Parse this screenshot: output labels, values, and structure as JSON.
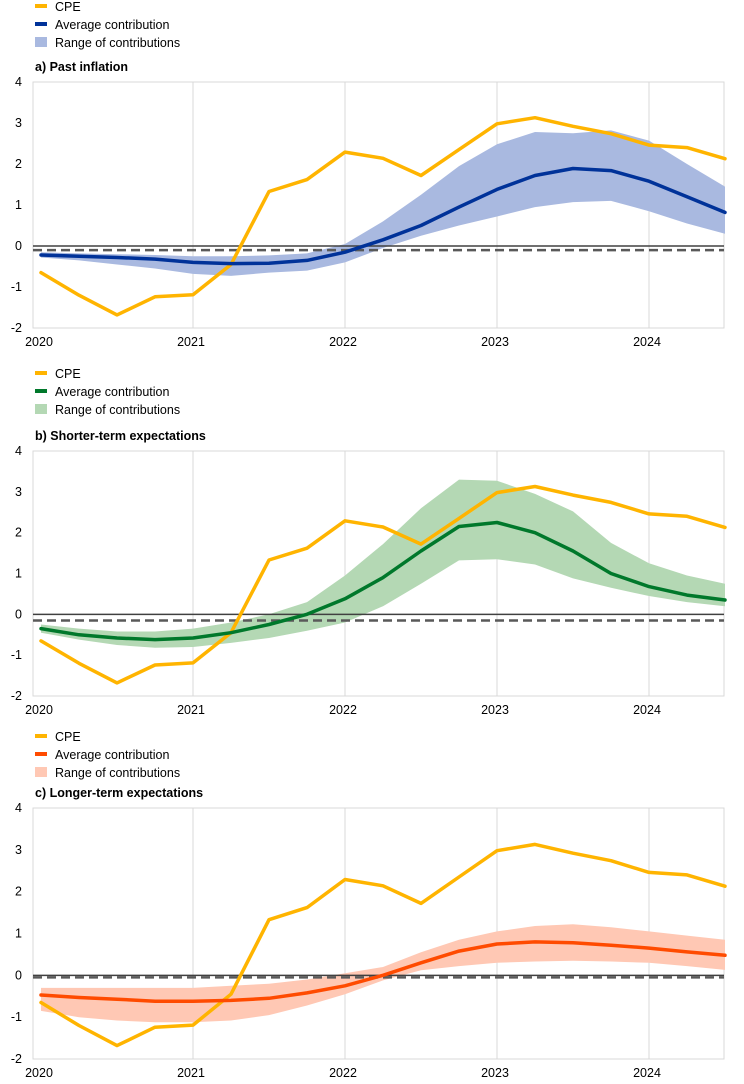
{
  "chart_data": [
    {
      "type": "line",
      "title": "a) Past inflation",
      "legend": {
        "placement": "top-left",
        "cpe_label": "CPE",
        "avg_label": "Average contribution",
        "range_label": "Range of contributions"
      },
      "colors": {
        "cpe": "#FFB400",
        "avg": "#003299",
        "band": "#A9B9E0"
      },
      "x": [
        2020.0,
        2020.25,
        2020.5,
        2020.75,
        2021.0,
        2021.25,
        2021.5,
        2021.75,
        2022.0,
        2022.25,
        2022.5,
        2022.75,
        2023.0,
        2023.25,
        2023.5,
        2023.75,
        2024.0,
        2024.25,
        2024.5
      ],
      "xticks": [
        2020,
        2021,
        2022,
        2023,
        2024
      ],
      "xtick_labels": [
        "2020",
        "2021",
        "2022",
        "2023",
        "2024"
      ],
      "ylim": [
        -2,
        4
      ],
      "yticks": [
        -2,
        -1,
        0,
        1,
        2,
        3,
        4
      ],
      "ytick_labels": [
        "-2",
        "-1",
        "0",
        "1",
        "2",
        "3",
        "4"
      ],
      "dashed_reference": -0.1,
      "grid": true,
      "series": [
        {
          "name": "CPE",
          "values": [
            -0.65,
            -1.2,
            -1.68,
            -1.24,
            -1.19,
            -0.45,
            1.33,
            1.62,
            2.29,
            2.14,
            1.72,
            2.35,
            2.98,
            3.13,
            2.92,
            2.74,
            2.46,
            2.4,
            2.13
          ]
        },
        {
          "name": "Average contribution",
          "values": [
            -0.22,
            -0.25,
            -0.28,
            -0.32,
            -0.4,
            -0.43,
            -0.42,
            -0.35,
            -0.15,
            0.15,
            0.5,
            0.95,
            1.38,
            1.72,
            1.89,
            1.84,
            1.58,
            1.2,
            0.82
          ]
        },
        {
          "name": "Range of contributions",
          "low": [
            -0.28,
            -0.35,
            -0.45,
            -0.55,
            -0.68,
            -0.73,
            -0.65,
            -0.6,
            -0.4,
            -0.05,
            0.25,
            0.5,
            0.72,
            0.95,
            1.07,
            1.1,
            0.85,
            0.55,
            0.3
          ],
          "high": [
            -0.15,
            -0.18,
            -0.2,
            -0.22,
            -0.25,
            -0.25,
            -0.23,
            -0.18,
            0.05,
            0.6,
            1.25,
            1.95,
            2.48,
            2.78,
            2.75,
            2.82,
            2.57,
            2.0,
            1.45
          ]
        }
      ]
    },
    {
      "type": "line",
      "title": "b) Shorter-term expectations",
      "legend": {
        "placement": "top-left",
        "cpe_label": "CPE",
        "avg_label": "Average contribution",
        "range_label": "Range of contributions"
      },
      "colors": {
        "cpe": "#FFB400",
        "avg": "#00782B",
        "band": "#B4D8B4"
      },
      "x": [
        2020.0,
        2020.25,
        2020.5,
        2020.75,
        2021.0,
        2021.25,
        2021.5,
        2021.75,
        2022.0,
        2022.25,
        2022.5,
        2022.75,
        2023.0,
        2023.25,
        2023.5,
        2023.75,
        2024.0,
        2024.25,
        2024.5
      ],
      "xticks": [
        2020,
        2021,
        2022,
        2023,
        2024
      ],
      "xtick_labels": [
        "2020",
        "2021",
        "2022",
        "2023",
        "2024"
      ],
      "ylim": [
        -2,
        4
      ],
      "yticks": [
        -2,
        -1,
        0,
        1,
        2,
        3,
        4
      ],
      "ytick_labels": [
        "-2",
        "-1",
        "0",
        "1",
        "2",
        "3",
        "4"
      ],
      "dashed_reference": -0.15,
      "grid": true,
      "series": [
        {
          "name": "CPE",
          "values": [
            -0.65,
            -1.2,
            -1.68,
            -1.24,
            -1.19,
            -0.45,
            1.33,
            1.62,
            2.29,
            2.14,
            1.72,
            2.35,
            2.98,
            3.13,
            2.92,
            2.74,
            2.46,
            2.4,
            2.13
          ]
        },
        {
          "name": "Average contribution",
          "values": [
            -0.35,
            -0.5,
            -0.58,
            -0.62,
            -0.58,
            -0.45,
            -0.25,
            0.0,
            0.38,
            0.9,
            1.55,
            2.15,
            2.25,
            2.0,
            1.55,
            1.0,
            0.68,
            0.47,
            0.35
          ]
        },
        {
          "name": "Range of contributions",
          "low": [
            -0.45,
            -0.62,
            -0.75,
            -0.82,
            -0.8,
            -0.7,
            -0.58,
            -0.4,
            -0.2,
            0.2,
            0.75,
            1.32,
            1.35,
            1.22,
            0.88,
            0.65,
            0.45,
            0.3,
            0.2
          ],
          "high": [
            -0.25,
            -0.35,
            -0.42,
            -0.42,
            -0.35,
            -0.2,
            0.0,
            0.3,
            0.95,
            1.72,
            2.6,
            3.3,
            3.27,
            2.95,
            2.52,
            1.75,
            1.25,
            0.95,
            0.75
          ]
        }
      ]
    },
    {
      "type": "line",
      "title": "c) Longer-term expectations",
      "legend": {
        "placement": "top-left",
        "cpe_label": "CPE",
        "avg_label": "Average contribution",
        "range_label": "Range of contributions"
      },
      "colors": {
        "cpe": "#FFB400",
        "avg": "#FF4B00",
        "band": "#FFC8B4"
      },
      "x": [
        2020.0,
        2020.25,
        2020.5,
        2020.75,
        2021.0,
        2021.25,
        2021.5,
        2021.75,
        2022.0,
        2022.25,
        2022.5,
        2022.75,
        2023.0,
        2023.25,
        2023.5,
        2023.75,
        2024.0,
        2024.25,
        2024.5
      ],
      "xticks": [
        2020,
        2021,
        2022,
        2023,
        2024
      ],
      "xtick_labels": [
        "2020",
        "2021",
        "2022",
        "2023",
        "2024"
      ],
      "ylim": [
        -2,
        4
      ],
      "yticks": [
        -2,
        -1,
        0,
        1,
        2,
        3,
        4
      ],
      "ytick_labels": [
        "-2",
        "-1",
        "0",
        "1",
        "2",
        "3",
        "4"
      ],
      "dashed_reference": -0.05,
      "grid": true,
      "series": [
        {
          "name": "CPE",
          "values": [
            -0.65,
            -1.2,
            -1.68,
            -1.24,
            -1.19,
            -0.45,
            1.33,
            1.62,
            2.29,
            2.14,
            1.72,
            2.35,
            2.98,
            3.13,
            2.92,
            2.74,
            2.46,
            2.4,
            2.13
          ]
        },
        {
          "name": "Average contribution",
          "values": [
            -0.47,
            -0.53,
            -0.57,
            -0.62,
            -0.62,
            -0.6,
            -0.55,
            -0.42,
            -0.25,
            0.0,
            0.3,
            0.58,
            0.75,
            0.8,
            0.78,
            0.72,
            0.65,
            0.56,
            0.48
          ]
        },
        {
          "name": "Range of contributions",
          "low": [
            -0.85,
            -1.0,
            -1.08,
            -1.12,
            -1.12,
            -1.08,
            -0.95,
            -0.72,
            -0.45,
            -0.12,
            0.12,
            0.22,
            0.3,
            0.33,
            0.35,
            0.33,
            0.3,
            0.22,
            0.13
          ],
          "high": [
            -0.3,
            -0.3,
            -0.3,
            -0.3,
            -0.3,
            -0.25,
            -0.2,
            -0.1,
            0.05,
            0.2,
            0.55,
            0.85,
            1.05,
            1.18,
            1.22,
            1.15,
            1.05,
            0.95,
            0.85
          ]
        }
      ]
    }
  ]
}
